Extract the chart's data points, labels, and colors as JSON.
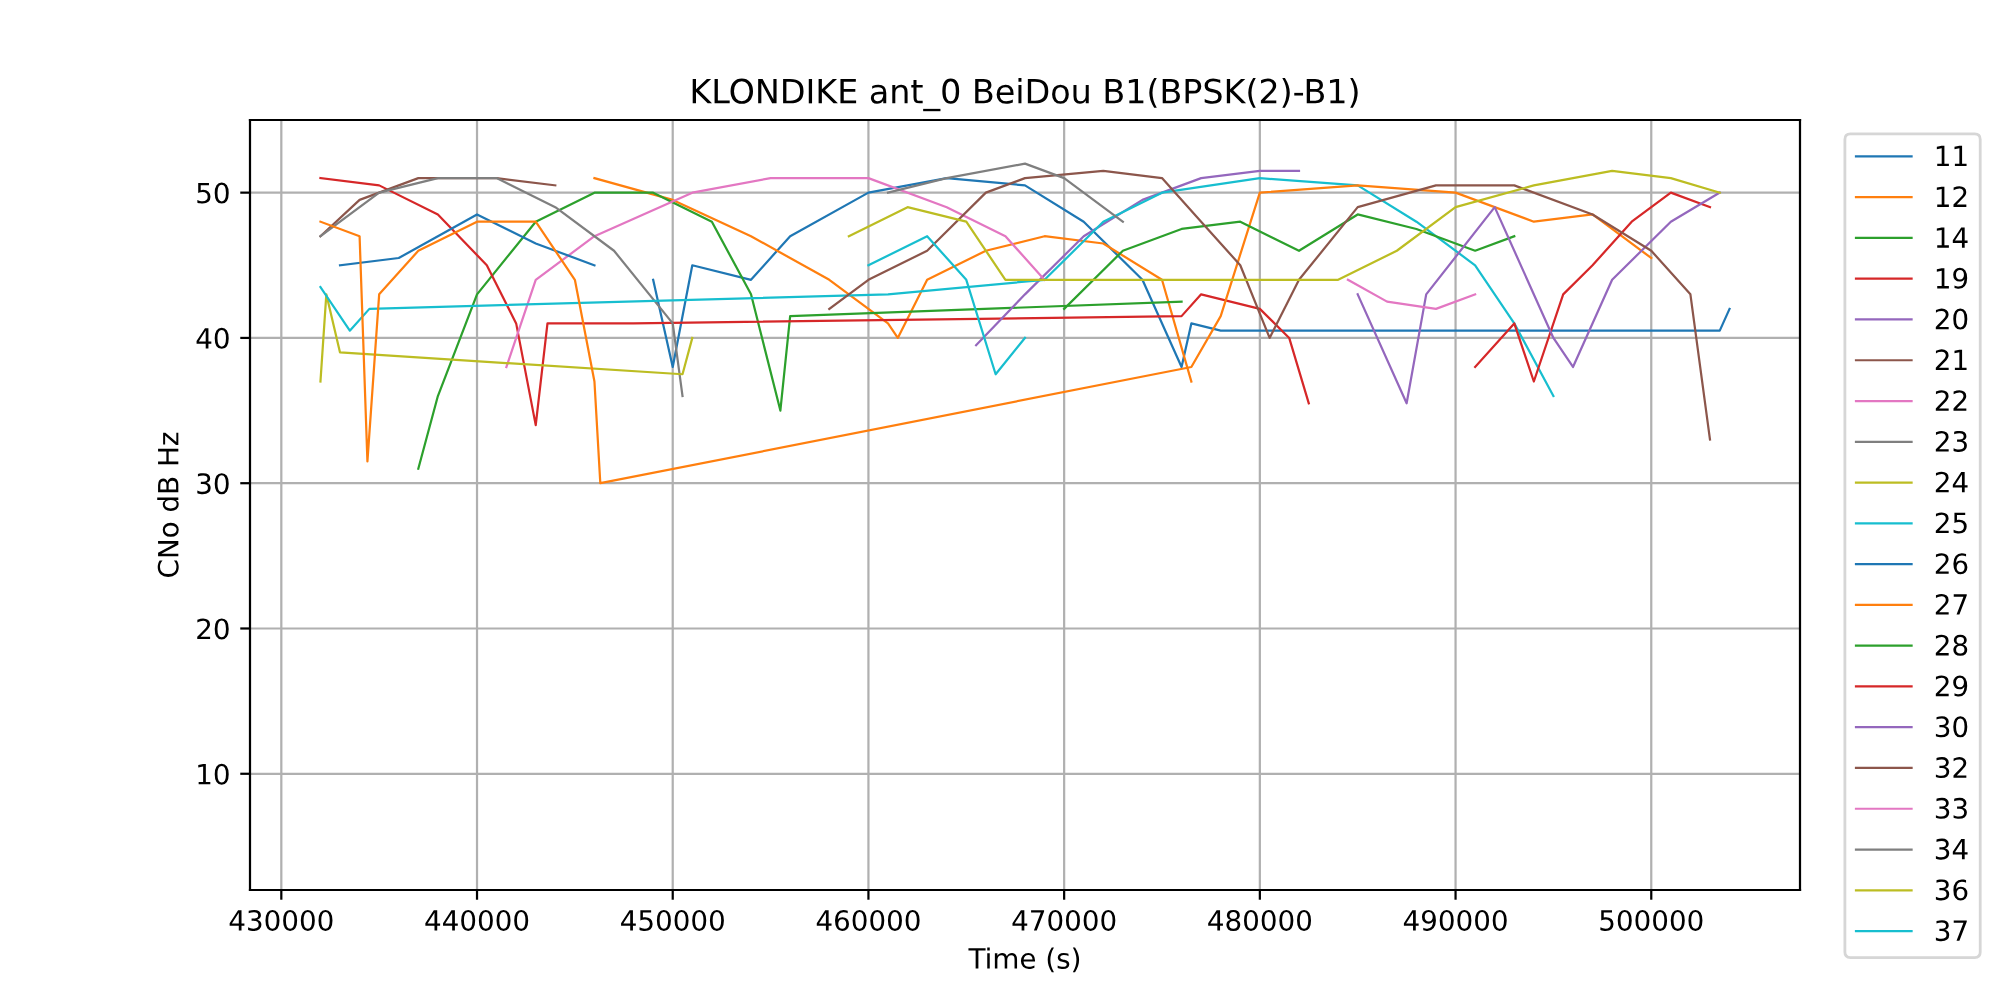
{
  "chart_data": {
    "type": "line",
    "title": "KLONDIKE ant_0 BeiDou B1(BPSK(2)-B1)",
    "xlabel": "Time (s)",
    "ylabel": "CNo dB Hz",
    "xlim": [
      428400,
      507600
    ],
    "ylim": [
      2,
      55
    ],
    "xticks": [
      430000,
      440000,
      450000,
      460000,
      470000,
      480000,
      490000,
      500000
    ],
    "yticks": [
      10,
      20,
      30,
      40,
      50
    ],
    "grid": true,
    "legend": "right",
    "marker": "none",
    "line_style": "solid",
    "series": [
      {
        "name": "11",
        "color": "#1f77b4",
        "x": [
          449000,
          450000,
          451000,
          454000,
          456000,
          460000,
          464000,
          468000,
          471000,
          474000,
          476000,
          476500,
          478000,
          503500,
          504000
        ],
        "values": [
          44,
          38,
          45,
          44,
          47,
          50,
          51,
          50.5,
          48,
          44,
          38,
          41,
          40.5,
          40.5,
          42
        ]
      },
      {
        "name": "12",
        "color": "#ff7f0e",
        "x": [
          446000,
          450000,
          454000,
          458000,
          461000,
          461500,
          463000,
          466000,
          469000,
          472000,
          475000,
          476500
        ],
        "values": [
          51,
          49.5,
          47,
          44,
          41,
          40,
          44,
          46,
          47,
          46.5,
          44,
          37
        ]
      },
      {
        "name": "14",
        "color": "#2ca02c",
        "x": [
          437000,
          438000,
          440000,
          443000,
          446000,
          449000,
          452000,
          454000,
          455500,
          456000,
          476000
        ],
        "values": [
          31,
          36,
          43,
          48,
          50,
          50,
          48,
          43,
          35,
          41.5,
          42.5
        ]
      },
      {
        "name": "19",
        "color": "#d62728",
        "x": [
          432000,
          435000,
          438000,
          440500,
          442000,
          443000,
          443600,
          448000,
          476000,
          477000,
          480000,
          481500,
          482500
        ],
        "values": [
          51,
          50.5,
          48.5,
          45,
          41,
          34,
          41,
          41,
          41.5,
          43,
          42,
          40,
          35.5
        ]
      },
      {
        "name": "20",
        "color": "#9467bd",
        "x": [
          465500,
          468000,
          471000,
          474000,
          477000,
          480000,
          482000
        ],
        "values": [
          39.5,
          43,
          47,
          49.5,
          51,
          51.5,
          51.5
        ]
      },
      {
        "name": "21",
        "color": "#8c564b",
        "x": [
          432000,
          434000,
          437000,
          441000,
          444000
        ],
        "values": [
          47,
          49.5,
          51,
          51,
          50.5
        ]
      },
      {
        "name": "22",
        "color": "#e377c2",
        "x": [
          441500,
          443000,
          446000,
          448500,
          451000,
          455000,
          460000,
          464000,
          467000,
          469000
        ],
        "values": [
          38,
          44,
          47,
          48.5,
          50,
          51,
          51,
          49,
          47,
          44
        ]
      },
      {
        "name": "23",
        "color": "#7f7f7f",
        "x": [
          432000,
          435000,
          438000,
          441000,
          444000,
          447000,
          450000,
          450500
        ],
        "values": [
          47,
          50,
          51,
          51,
          49,
          46,
          41,
          36
        ]
      },
      {
        "name": "24",
        "color": "#bcbd22",
        "x": [
          432000,
          432300,
          433000,
          450500,
          451000
        ],
        "values": [
          37,
          43,
          39,
          37.5,
          40
        ]
      },
      {
        "name": "25",
        "color": "#17becf",
        "x": [
          432000,
          433500,
          434500,
          461000,
          469000,
          472000,
          475000,
          480000,
          485000,
          488000,
          491000,
          493000,
          495000
        ],
        "values": [
          43.5,
          40.5,
          42,
          43,
          44,
          48,
          50,
          51,
          50.5,
          48,
          45,
          41,
          36
        ]
      },
      {
        "name": "26",
        "color": "#1f77b4",
        "x": [
          433000,
          436000,
          438000,
          440000,
          443000,
          446000
        ],
        "values": [
          45,
          45.5,
          47,
          48.5,
          46.5,
          45
        ]
      },
      {
        "name": "27",
        "color": "#ff7f0e",
        "x": [
          432000,
          434000,
          434400,
          435000,
          437000,
          440000,
          443000,
          445000,
          446000,
          446300,
          476500,
          478000,
          480000,
          485000,
          490000,
          494000,
          497000,
          500000
        ],
        "values": [
          48,
          47,
          31.5,
          43,
          46,
          48,
          48,
          44,
          37,
          30,
          38,
          41.5,
          50,
          50.5,
          50,
          48,
          48.5,
          45.5
        ]
      },
      {
        "name": "28",
        "color": "#2ca02c",
        "x": [
          470000,
          473000,
          476000,
          479000,
          482000,
          485000,
          488000,
          491000,
          493000
        ],
        "values": [
          42,
          46,
          47.5,
          48,
          46,
          48.5,
          47.5,
          46,
          47
        ]
      },
      {
        "name": "29",
        "color": "#d62728",
        "x": [
          491000,
          493000,
          494000,
          495500,
          497000,
          499000,
          501000,
          503000
        ],
        "values": [
          38,
          41,
          37,
          43,
          45,
          48,
          50,
          49
        ]
      },
      {
        "name": "30",
        "color": "#9467bd",
        "x": [
          485000,
          487500,
          488500,
          492000,
          495000,
          496000,
          498000,
          501000,
          503500
        ],
        "values": [
          43,
          35.5,
          43,
          49,
          40,
          38,
          44,
          48,
          50
        ]
      },
      {
        "name": "32",
        "color": "#8c564b",
        "x": [
          458000,
          460000,
          463000,
          466000,
          468000,
          472000,
          475000,
          477000,
          479000,
          480500,
          482000,
          485000,
          489000,
          493000,
          497000,
          500000,
          502000,
          503000
        ],
        "values": [
          42,
          44,
          46,
          50,
          51,
          51.5,
          51,
          48,
          45,
          40,
          44,
          49,
          50.5,
          50.5,
          48.5,
          46,
          43,
          33
        ]
      },
      {
        "name": "33",
        "color": "#e377c2",
        "x": [
          484500,
          486500,
          489000,
          491000
        ],
        "values": [
          44,
          42.5,
          42,
          43
        ]
      },
      {
        "name": "34",
        "color": "#7f7f7f",
        "x": [
          461000,
          464000,
          468000,
          470000,
          473000
        ],
        "values": [
          50,
          51,
          52,
          51,
          48
        ]
      },
      {
        "name": "36",
        "color": "#bcbd22",
        "x": [
          459000,
          462000,
          465000,
          467000,
          484000,
          487000,
          490000,
          494000,
          498000,
          501000,
          503500
        ],
        "values": [
          47,
          49,
          48,
          44,
          44,
          46,
          49,
          50.5,
          51.5,
          51,
          50
        ]
      },
      {
        "name": "37",
        "color": "#17becf",
        "x": [
          460000,
          463000,
          465000,
          466500,
          468000
        ],
        "values": [
          45,
          47,
          44,
          37.5,
          40
        ]
      }
    ]
  }
}
